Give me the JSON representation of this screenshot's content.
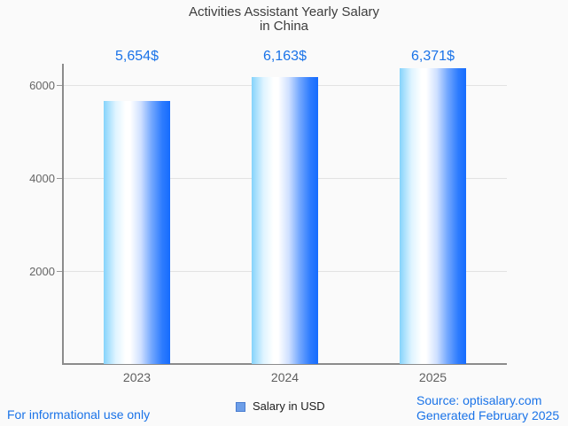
{
  "title": {
    "line1": "Activities Assistant Yearly Salary",
    "line2": "in China"
  },
  "chart_data": {
    "type": "bar",
    "title": "Activities Assistant Yearly Salary in China",
    "categories": [
      "2023",
      "2024",
      "2025"
    ],
    "values": [
      5654,
      6163,
      6371
    ],
    "value_labels": [
      "5,654$",
      "6,163$",
      "6,371$"
    ],
    "series": [
      {
        "name": "Salary in USD",
        "values": [
          5654,
          6163,
          6371
        ]
      }
    ],
    "xlabel": "",
    "ylabel": "",
    "yticks": [
      2000,
      4000,
      6000
    ],
    "ylim": [
      0,
      6450
    ],
    "grid": true,
    "legend_position": "bottom"
  },
  "legend": {
    "label": "Salary in USD"
  },
  "footer": {
    "disclaimer": "For informational use only",
    "source": "Source: optisalary.com",
    "generated": "Generated February 2025"
  },
  "colors": {
    "accent_blue": "#1a73e8",
    "title_text": "#3d3d3d",
    "axis_text": "#666666",
    "axis_line": "#8b8b8b",
    "gridline": "#e2e2e2",
    "background": "#fafafa",
    "bar_gradient_left": "#85d3fb",
    "bar_gradient_mid": "#ffffff",
    "bar_gradient_right": "#156bfe",
    "legend_marker_fill": "#6d9ee8",
    "legend_marker_border": "#4a7dd0"
  }
}
